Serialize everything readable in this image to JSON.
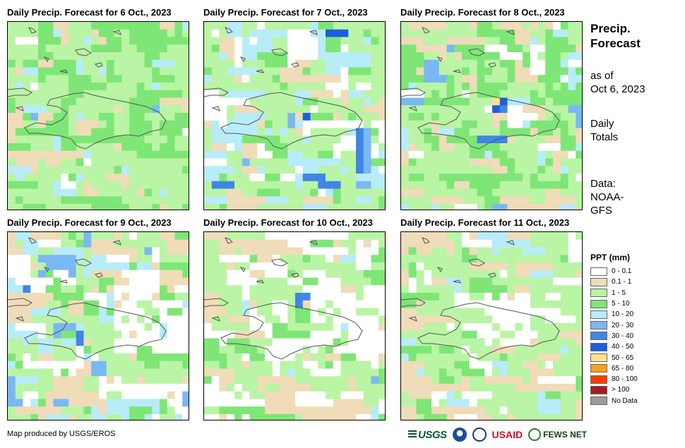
{
  "panels": [
    {
      "title": "Daily Precip. Forecast for 6 Oct., 2023",
      "seed": 11,
      "profile": "day6"
    },
    {
      "title": "Daily Precip. Forecast for 7 Oct., 2023",
      "seed": 23,
      "profile": "day7"
    },
    {
      "title": "Daily Precip. Forecast for 8 Oct., 2023",
      "seed": 37,
      "profile": "day8"
    },
    {
      "title": "Daily Precip. Forecast for 9 Oct., 2023",
      "seed": 41,
      "profile": "day9"
    },
    {
      "title": "Daily Precip. Forecast for 10 Oct., 2023",
      "seed": 53,
      "profile": "day10"
    },
    {
      "title": "Daily Precip. Forecast for 11 Oct., 2023",
      "seed": 67,
      "profile": "day11"
    }
  ],
  "side": {
    "title_line1": "Precip.",
    "title_line2": "Forecast",
    "asof_line1": "as of",
    "asof_line2": "Oct 6, 2023",
    "daily_line1": "Daily",
    "daily_line2": "Totals",
    "data_line1": "Data:",
    "data_line2": "NOAA-",
    "data_line3": "GFS"
  },
  "legend": {
    "title": "PPT (mm)",
    "items": [
      {
        "label": "0 - 0.1",
        "color": "#ffffff"
      },
      {
        "label": "0.1 - 1",
        "color": "#f0dcb8"
      },
      {
        "label": "1 - 5",
        "color": "#b9f5a4"
      },
      {
        "label": "5 - 10",
        "color": "#7ee676"
      },
      {
        "label": "10 - 20",
        "color": "#b8ecf8"
      },
      {
        "label": "20 - 30",
        "color": "#7ab8f4"
      },
      {
        "label": "30 - 40",
        "color": "#3f86e6"
      },
      {
        "label": "40 - 50",
        "color": "#1d5ee0"
      },
      {
        "label": "50 - 65",
        "color": "#ffe48a"
      },
      {
        "label": "65 - 80",
        "color": "#ffa11a"
      },
      {
        "label": "80 - 100",
        "color": "#ff3a00"
      },
      {
        "label": "> 100",
        "color": "#a61b1b"
      },
      {
        "label": "No Data",
        "color": "#9c9c9c"
      }
    ]
  },
  "credit": "Map produced by USGS/EROS",
  "logos": {
    "usgs": "USGS",
    "usaid": "USAID",
    "fews": "FEWS NET"
  },
  "icons": [
    "usgs-logo-icon",
    "noaa-logo-icon",
    "usaid-seal-icon",
    "fews-net-logo-icon"
  ]
}
